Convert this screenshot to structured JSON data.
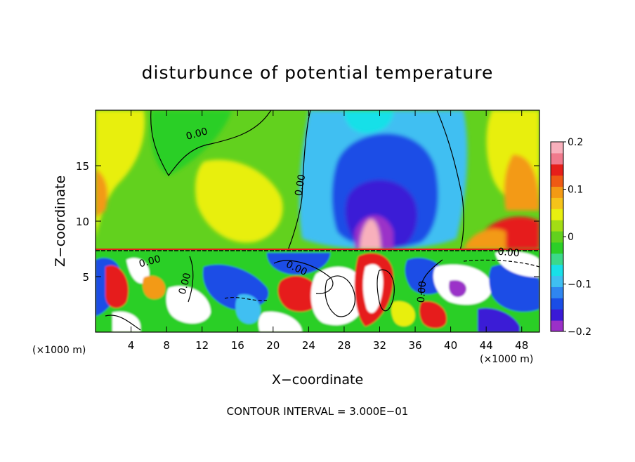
{
  "chart_data": {
    "type": "heatmap",
    "title": "disturbunce of potential temperature",
    "xlabel": "X−coordinate",
    "ylabel": "Z−coordinate",
    "x_unit_left": "(×1000 m)",
    "x_unit_right": "(×1000 m)",
    "footer": "CONTOUR INTERVAL = 3.000E−01",
    "xlim": [
      0,
      50
    ],
    "ylim": [
      0,
      20
    ],
    "x_ticks": [
      4,
      8,
      12,
      16,
      20,
      24,
      28,
      32,
      36,
      40,
      44,
      48
    ],
    "x_tick_labels": [
      "4",
      "8",
      "12",
      "16",
      "20",
      "24",
      "28",
      "32",
      "36",
      "40",
      "44",
      "48"
    ],
    "y_ticks": [
      5,
      10,
      15
    ],
    "y_tick_labels": [
      "5",
      "10",
      "15"
    ],
    "colorbar": {
      "range": [
        -0.2,
        0.2
      ],
      "ticks": [
        0.2,
        0.1,
        0,
        -0.1,
        -0.2
      ],
      "tick_labels": [
        "0.2",
        "0.1",
        "0",
        "−0.1",
        "−0.2"
      ],
      "colors": [
        "#9b30c8",
        "#3a1ad6",
        "#1a4de6",
        "#2f86f0",
        "#3fbff2",
        "#18e0e8",
        "#3bd98a",
        "#2ccf28",
        "#62d11e",
        "#a3dd14",
        "#e8ef10",
        "#f5c31a",
        "#f39a14",
        "#ee5a14",
        "#e61f1a",
        "#f07a8c",
        "#f8b0bc"
      ]
    },
    "contour_labels": [
      {
        "text": "0.00",
        "x": 11.5,
        "z": 17.6,
        "rotate": -15
      },
      {
        "text": "0.00",
        "x": 23.4,
        "z": 13.2,
        "rotate": -80
      },
      {
        "text": "0.00",
        "x": 46.5,
        "z": 6.9,
        "rotate": 5
      },
      {
        "text": "0.00",
        "x": 22.5,
        "z": 5.5,
        "rotate": 25
      },
      {
        "text": "0.00",
        "x": 6.2,
        "z": 6.1,
        "rotate": -15
      },
      {
        "text": "0.00",
        "x": 10.4,
        "z": 4.3,
        "rotate": -75
      },
      {
        "text": "0.00",
        "x": 37.1,
        "z": 3.6,
        "rotate": -85
      }
    ]
  }
}
